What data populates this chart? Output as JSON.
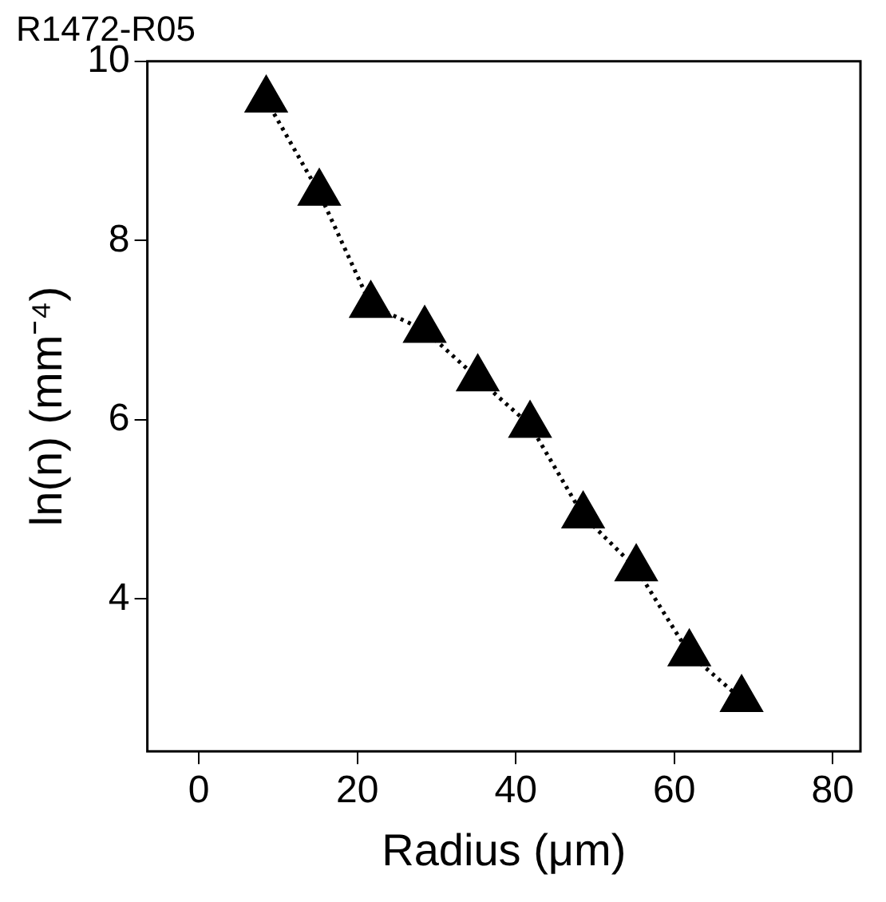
{
  "chart_data": {
    "type": "line",
    "title": "R1472-R05",
    "xlabel": "Radius (μm)",
    "ylabel": "ln(n) (mm⁻⁴)",
    "x": [
      8.5,
      15.2,
      21.7,
      28.5,
      35.2,
      41.8,
      48.5,
      55.2,
      61.9,
      68.5
    ],
    "series": [
      {
        "color": "#000000",
        "values": [
          9.57,
          8.53,
          7.28,
          7.0,
          6.46,
          5.94,
          4.93,
          4.34,
          3.39,
          2.88
        ]
      }
    ],
    "xlim": [
      -6.5,
      83.5
    ],
    "xticks": [
      0,
      20,
      40,
      60,
      80
    ],
    "ylim": [
      2.3,
      10
    ],
    "yticks": [
      4,
      6,
      8,
      10
    ],
    "grid": false,
    "legend": false,
    "marker": "triangle",
    "line_style": "dotted"
  }
}
